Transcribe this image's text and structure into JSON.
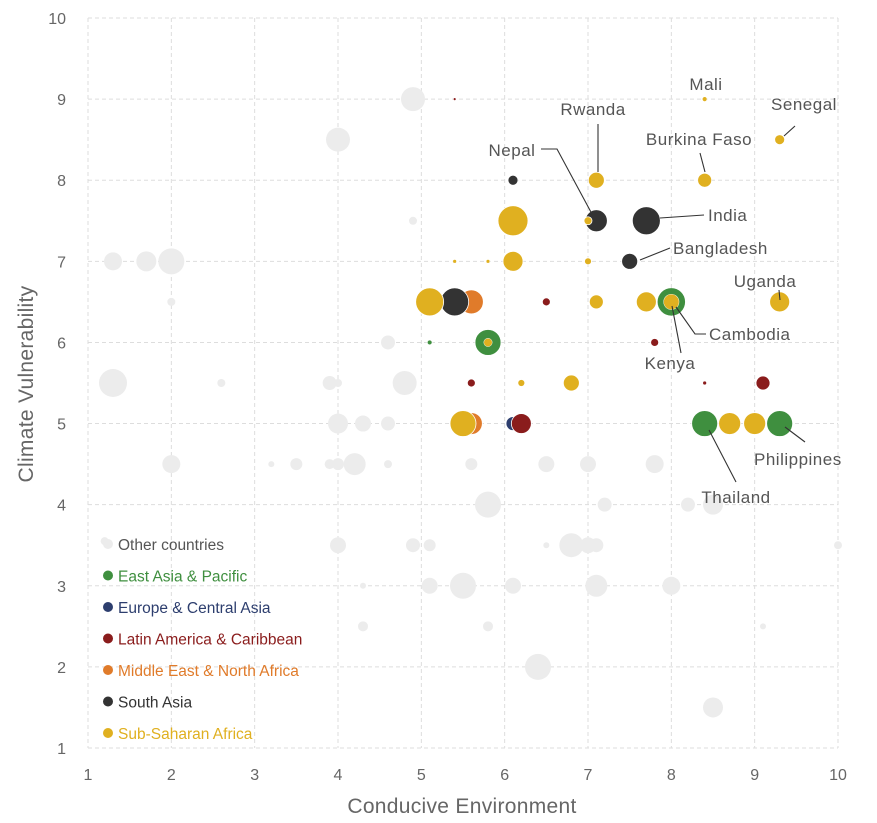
{
  "chart_data": {
    "type": "scatter",
    "title": "",
    "xlabel": "Conducive Environment",
    "ylabel": "Climate Vulnerability",
    "xlim": [
      1,
      10
    ],
    "ylim": [
      1,
      10
    ],
    "xticks": [
      "1",
      "2",
      "3",
      "4",
      "5",
      "6",
      "7",
      "8",
      "9",
      "10"
    ],
    "yticks": [
      "1",
      "2",
      "3",
      "4",
      "5",
      "6",
      "7",
      "8",
      "9",
      "10"
    ],
    "grid": true,
    "legend_position": "bottom-left",
    "series": [
      {
        "name": "Other countries",
        "color": "#ececec",
        "points": [
          {
            "x": 1.3,
            "y": 7.0,
            "r": 9
          },
          {
            "x": 1.7,
            "y": 7.0,
            "r": 10
          },
          {
            "x": 2.0,
            "y": 7.0,
            "r": 13
          },
          {
            "x": 2.0,
            "y": 6.5,
            "r": 4
          },
          {
            "x": 4.9,
            "y": 9.0,
            "r": 12
          },
          {
            "x": 4.0,
            "y": 8.5,
            "r": 12
          },
          {
            "x": 4.9,
            "y": 7.5,
            "r": 4
          },
          {
            "x": 4.6,
            "y": 6.0,
            "r": 7
          },
          {
            "x": 1.3,
            "y": 5.5,
            "r": 14
          },
          {
            "x": 2.6,
            "y": 5.5,
            "r": 4
          },
          {
            "x": 3.9,
            "y": 5.5,
            "r": 7
          },
          {
            "x": 4.8,
            "y": 5.5,
            "r": 12
          },
          {
            "x": 4.0,
            "y": 5.5,
            "r": 4
          },
          {
            "x": 4.0,
            "y": 5.0,
            "r": 10
          },
          {
            "x": 4.3,
            "y": 5.0,
            "r": 8
          },
          {
            "x": 4.6,
            "y": 5.0,
            "r": 7
          },
          {
            "x": 2.0,
            "y": 4.5,
            "r": 9
          },
          {
            "x": 3.2,
            "y": 4.5,
            "r": 3
          },
          {
            "x": 3.5,
            "y": 4.5,
            "r": 6
          },
          {
            "x": 3.9,
            "y": 4.5,
            "r": 5
          },
          {
            "x": 4.0,
            "y": 4.5,
            "r": 6
          },
          {
            "x": 4.2,
            "y": 4.5,
            "r": 11
          },
          {
            "x": 4.6,
            "y": 4.5,
            "r": 4
          },
          {
            "x": 5.6,
            "y": 4.5,
            "r": 6
          },
          {
            "x": 6.5,
            "y": 4.5,
            "r": 8
          },
          {
            "x": 7.0,
            "y": 4.5,
            "r": 8
          },
          {
            "x": 7.8,
            "y": 4.5,
            "r": 9
          },
          {
            "x": 5.8,
            "y": 4.0,
            "r": 13
          },
          {
            "x": 7.2,
            "y": 4.0,
            "r": 7
          },
          {
            "x": 8.2,
            "y": 4.0,
            "r": 7
          },
          {
            "x": 8.5,
            "y": 4.0,
            "r": 10
          },
          {
            "x": 1.2,
            "y": 3.55,
            "r": 4
          },
          {
            "x": 4.0,
            "y": 3.5,
            "r": 8
          },
          {
            "x": 4.9,
            "y": 3.5,
            "r": 7
          },
          {
            "x": 5.1,
            "y": 3.5,
            "r": 6
          },
          {
            "x": 6.5,
            "y": 3.5,
            "r": 3
          },
          {
            "x": 6.8,
            "y": 3.5,
            "r": 12
          },
          {
            "x": 7.0,
            "y": 3.5,
            "r": 8
          },
          {
            "x": 7.1,
            "y": 3.5,
            "r": 7
          },
          {
            "x": 10.0,
            "y": 3.5,
            "r": 4
          },
          {
            "x": 5.1,
            "y": 3.0,
            "r": 8
          },
          {
            "x": 5.5,
            "y": 3.0,
            "r": 13
          },
          {
            "x": 6.1,
            "y": 3.0,
            "r": 8
          },
          {
            "x": 7.1,
            "y": 3.0,
            "r": 11
          },
          {
            "x": 8.0,
            "y": 3.0,
            "r": 9
          },
          {
            "x": 4.3,
            "y": 3.0,
            "r": 3
          },
          {
            "x": 4.3,
            "y": 2.5,
            "r": 5
          },
          {
            "x": 5.8,
            "y": 2.5,
            "r": 5
          },
          {
            "x": 9.1,
            "y": 2.5,
            "r": 3
          },
          {
            "x": 6.4,
            "y": 2.0,
            "r": 13
          },
          {
            "x": 8.5,
            "y": 1.5,
            "r": 10
          }
        ]
      },
      {
        "name": "East Asia & Pacific",
        "color": "#3f8f3f",
        "points": [
          {
            "x": 5.8,
            "y": 6.0,
            "r": 13
          },
          {
            "x": 5.1,
            "y": 6.0,
            "r": 2.5
          },
          {
            "x": 8.0,
            "y": 6.5,
            "r": 12
          },
          {
            "x": 8.4,
            "y": 5.0,
            "r": 13
          },
          {
            "x": 9.3,
            "y": 5.0,
            "r": 13
          }
        ]
      },
      {
        "name": "Europe & Central Asia",
        "color": "#2d3e6e",
        "points": [
          {
            "x": 6.1,
            "y": 5.0,
            "r": 7
          }
        ]
      },
      {
        "name": "Latin America & Caribbean",
        "color": "#8a1c1c",
        "points": [
          {
            "x": 5.4,
            "y": 9.0,
            "r": 1.5
          },
          {
            "x": 6.5,
            "y": 6.5,
            "r": 4
          },
          {
            "x": 7.8,
            "y": 6.0,
            "r": 4
          },
          {
            "x": 5.6,
            "y": 5.5,
            "r": 4
          },
          {
            "x": 8.4,
            "y": 5.5,
            "r": 2
          },
          {
            "x": 9.1,
            "y": 5.5,
            "r": 7
          },
          {
            "x": 6.2,
            "y": 5.0,
            "r": 10
          }
        ]
      },
      {
        "name": "Middle East & North Africa",
        "color": "#e07b2a",
        "points": [
          {
            "x": 5.6,
            "y": 6.5,
            "r": 12
          },
          {
            "x": 5.6,
            "y": 5.0,
            "r": 11
          }
        ]
      },
      {
        "name": "South Asia",
        "color": "#333333",
        "points": [
          {
            "x": 6.1,
            "y": 8.0,
            "r": 5
          },
          {
            "x": 7.1,
            "y": 7.5,
            "r": 11
          },
          {
            "x": 7.7,
            "y": 7.5,
            "r": 14
          },
          {
            "x": 7.5,
            "y": 7.0,
            "r": 8
          },
          {
            "x": 5.4,
            "y": 6.5,
            "r": 14
          }
        ]
      },
      {
        "name": "Sub-Saharan Africa",
        "color": "#e0b020",
        "points": [
          {
            "x": 8.4,
            "y": 9.0,
            "r": 2.5
          },
          {
            "x": 9.3,
            "y": 8.5,
            "r": 5
          },
          {
            "x": 7.1,
            "y": 8.0,
            "r": 8
          },
          {
            "x": 8.4,
            "y": 8.0,
            "r": 7
          },
          {
            "x": 6.1,
            "y": 7.5,
            "r": 15
          },
          {
            "x": 7.0,
            "y": 7.5,
            "r": 4
          },
          {
            "x": 5.4,
            "y": 7.0,
            "r": 2
          },
          {
            "x": 5.8,
            "y": 7.0,
            "r": 2
          },
          {
            "x": 6.1,
            "y": 7.0,
            "r": 10
          },
          {
            "x": 7.0,
            "y": 7.0,
            "r": 3.5
          },
          {
            "x": 5.1,
            "y": 6.5,
            "r": 14
          },
          {
            "x": 7.1,
            "y": 6.5,
            "r": 7
          },
          {
            "x": 7.7,
            "y": 6.5,
            "r": 10
          },
          {
            "x": 8.0,
            "y": 6.5,
            "r": 7.5
          },
          {
            "x": 9.3,
            "y": 6.5,
            "r": 10
          },
          {
            "x": 5.8,
            "y": 6.0,
            "r": 4
          },
          {
            "x": 6.2,
            "y": 5.5,
            "r": 3.5
          },
          {
            "x": 6.8,
            "y": 5.5,
            "r": 8
          },
          {
            "x": 5.5,
            "y": 5.0,
            "r": 13
          },
          {
            "x": 8.7,
            "y": 5.0,
            "r": 11
          },
          {
            "x": 9.0,
            "y": 5.0,
            "r": 11
          }
        ]
      }
    ],
    "annotations": [
      {
        "text": "Mali",
        "x": 8.4,
        "y": 9.0
      },
      {
        "text": "Senegal",
        "x": 9.3,
        "y": 8.5
      },
      {
        "text": "Rwanda",
        "x": 7.1,
        "y": 8.0
      },
      {
        "text": "Burkina Faso",
        "x": 8.4,
        "y": 8.0
      },
      {
        "text": "Nepal",
        "x": 7.1,
        "y": 7.5
      },
      {
        "text": "India",
        "x": 7.7,
        "y": 7.5
      },
      {
        "text": "Bangladesh",
        "x": 7.5,
        "y": 7.0
      },
      {
        "text": "Uganda",
        "x": 9.3,
        "y": 6.5
      },
      {
        "text": "Cambodia",
        "x": 8.0,
        "y": 6.5
      },
      {
        "text": "Kenya",
        "x": 8.0,
        "y": 6.5
      },
      {
        "text": "Philippines",
        "x": 9.3,
        "y": 5.0
      },
      {
        "text": "Thailand",
        "x": 8.4,
        "y": 5.0
      }
    ]
  }
}
